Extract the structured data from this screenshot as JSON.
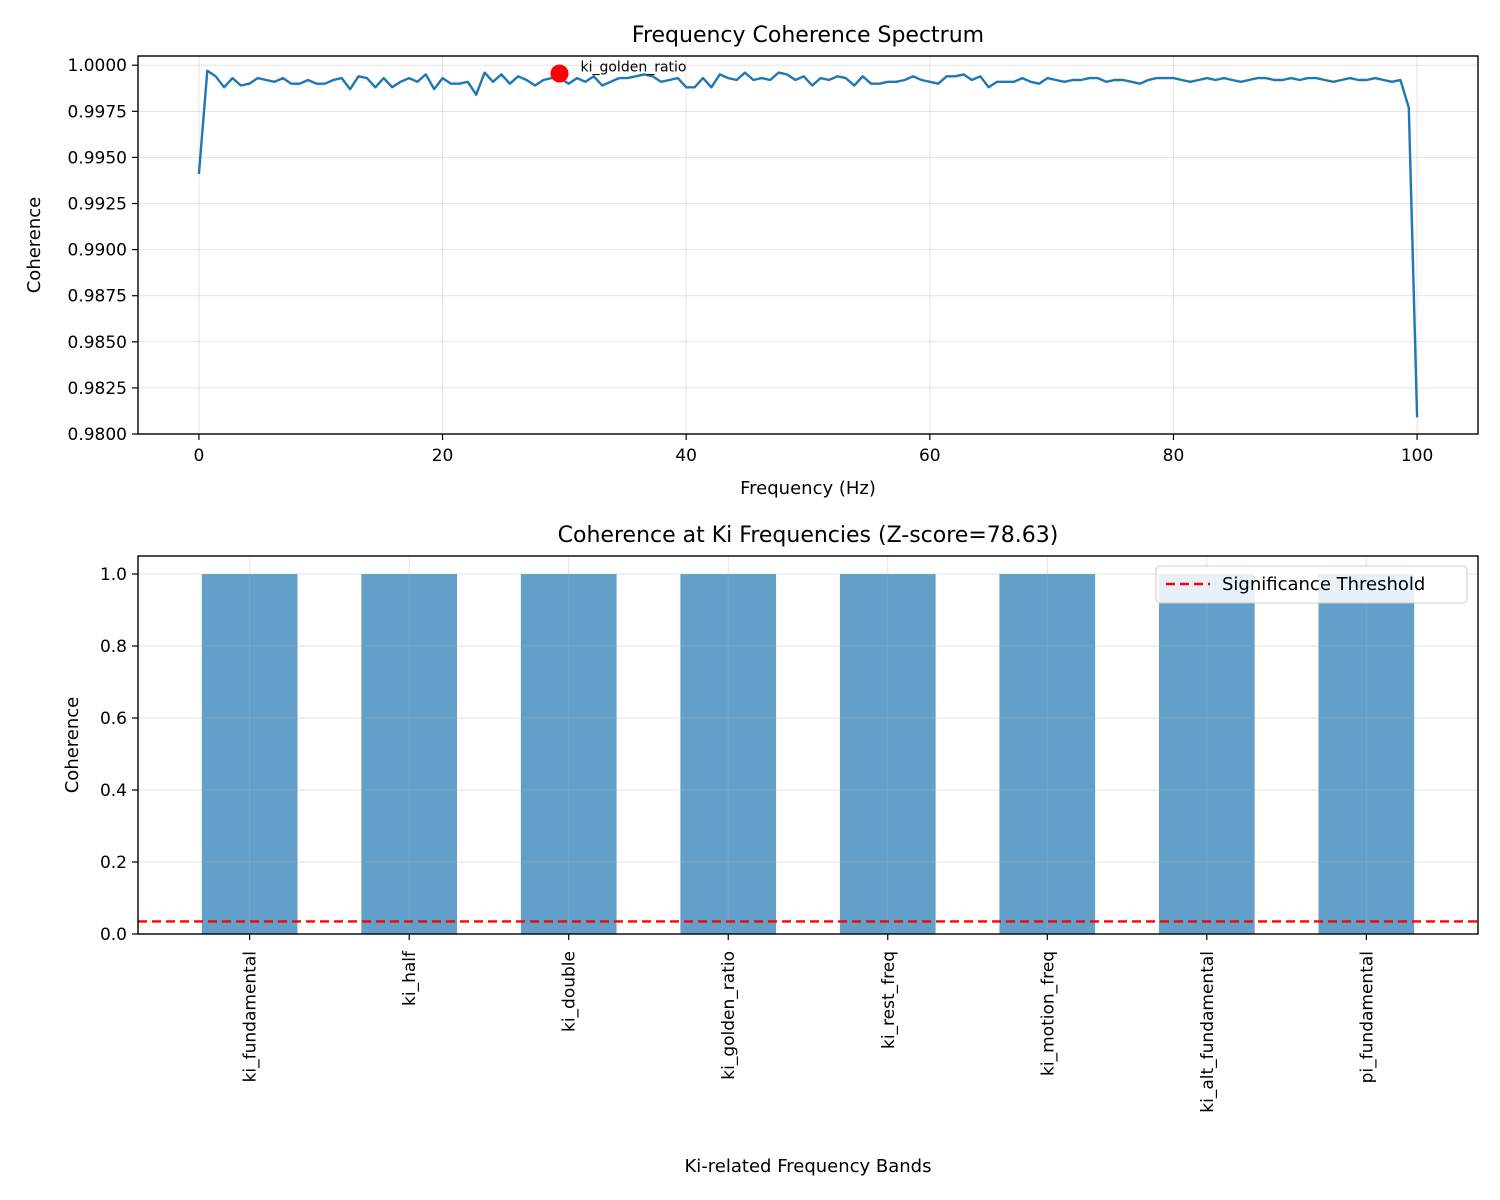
{
  "chart_data": [
    {
      "type": "line",
      "title": "Frequency Coherence Spectrum",
      "xlabel": "Frequency (Hz)",
      "ylabel": "Coherence",
      "xlim": [
        -5,
        105
      ],
      "ylim": [
        0.98,
        1.0005
      ],
      "xticks": [
        0,
        20,
        40,
        60,
        80,
        100
      ],
      "yticks": [
        0.98,
        0.9825,
        0.985,
        0.9875,
        0.99,
        0.9925,
        0.995,
        0.9975,
        1.0
      ],
      "ytick_labels": [
        "0.9800",
        "0.9825",
        "0.9850",
        "0.9875",
        "0.9900",
        "0.9925",
        "0.9950",
        "0.9975",
        "1.0000"
      ],
      "grid": true,
      "line_color": "#1f77b4",
      "x_start": 0,
      "x_step": 0.6897,
      "y": [
        0.9941,
        0.9997,
        0.9994,
        0.9988,
        0.9993,
        0.9989,
        0.999,
        0.9993,
        0.9992,
        0.9991,
        0.9993,
        0.999,
        0.999,
        0.9992,
        0.999,
        0.999,
        0.9992,
        0.9993,
        0.9987,
        0.9994,
        0.9993,
        0.9988,
        0.9993,
        0.9988,
        0.9991,
        0.9993,
        0.9991,
        0.9995,
        0.9987,
        0.9993,
        0.999,
        0.999,
        0.9991,
        0.9984,
        0.9996,
        0.9991,
        0.9995,
        0.999,
        0.9994,
        0.9992,
        0.9989,
        0.9992,
        0.9993,
        0.9993,
        0.999,
        0.9993,
        0.9991,
        0.9994,
        0.9989,
        0.9991,
        0.9993,
        0.9993,
        0.9994,
        0.9995,
        0.9994,
        0.9991,
        0.9992,
        0.9993,
        0.9988,
        0.9988,
        0.9993,
        0.9988,
        0.9995,
        0.9993,
        0.9992,
        0.9996,
        0.9992,
        0.9993,
        0.9992,
        0.9996,
        0.9995,
        0.9992,
        0.9994,
        0.9989,
        0.9993,
        0.9992,
        0.9994,
        0.9993,
        0.9989,
        0.9994,
        0.999,
        0.999,
        0.9991,
        0.9991,
        0.9992,
        0.9994,
        0.9992,
        0.9991,
        0.999,
        0.9994,
        0.9994,
        0.9995,
        0.9992,
        0.9994,
        0.9988,
        0.9991,
        0.9991,
        0.9991,
        0.9993,
        0.9991,
        0.999,
        0.9993,
        0.9992,
        0.9991,
        0.9992,
        0.9992,
        0.9993,
        0.9993,
        0.9991,
        0.9992,
        0.9992,
        0.9991,
        0.999,
        0.9992,
        0.9993,
        0.9993,
        0.9993,
        0.9992,
        0.9991,
        0.9992,
        0.9993,
        0.9992,
        0.9993,
        0.9992,
        0.9991,
        0.9992,
        0.9993,
        0.9993,
        0.9992,
        0.9992,
        0.9993,
        0.9992,
        0.9993,
        0.9993,
        0.9992,
        0.9991,
        0.9992,
        0.9993,
        0.9992,
        0.9992,
        0.9993,
        0.9992,
        0.9991,
        0.9992,
        0.9977,
        0.9809
      ],
      "highlight": {
        "x": 29.6,
        "y": 0.99955,
        "label": "ki_golden_ratio",
        "color": "#ff0000"
      }
    },
    {
      "type": "bar",
      "title": "Coherence at Ki Frequencies (Z-score=78.63)",
      "xlabel": "Ki-related Frequency Bands",
      "ylabel": "Coherence",
      "ylim": [
        0,
        1.05
      ],
      "yticks": [
        0.0,
        0.2,
        0.4,
        0.6,
        0.8,
        1.0
      ],
      "ytick_labels": [
        "0.0",
        "0.2",
        "0.4",
        "0.6",
        "0.8",
        "1.0"
      ],
      "grid": true,
      "bar_color": "#1f77b4",
      "categories": [
        "ki_fundamental",
        "ki_half",
        "ki_double",
        "ki_golden_ratio",
        "ki_rest_freq",
        "ki_motion_freq",
        "ki_alt_fundamental",
        "pi_fundamental"
      ],
      "values": [
        1.0,
        1.0,
        1.0,
        1.0,
        1.0,
        1.0,
        1.0,
        1.0
      ],
      "threshold": {
        "value": 0.035,
        "label": "Significance Threshold",
        "color": "#ff0000"
      },
      "legend_position": "upper right"
    }
  ]
}
